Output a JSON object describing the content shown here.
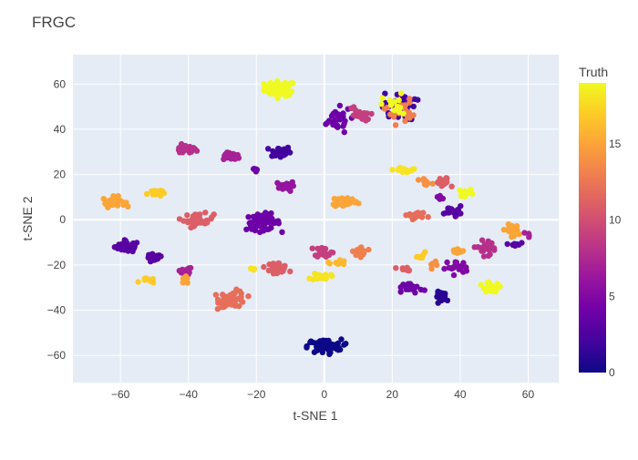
{
  "chart_data": {
    "type": "scatter",
    "title": "FRGC",
    "xlabel": "t-SNE 1",
    "ylabel": "t-SNE 2",
    "xlim": [
      -74,
      69
    ],
    "ylim": [
      -72,
      73
    ],
    "xticks": [
      -60,
      -40,
      -20,
      0,
      20,
      40,
      60
    ],
    "yticks": [
      -60,
      -40,
      -20,
      0,
      20,
      40,
      60
    ],
    "grid": true,
    "background": "#e5ecf6",
    "colorbar": {
      "title": "Truth",
      "range": [
        0,
        19
      ],
      "ticks": [
        0,
        5,
        10,
        15
      ],
      "colorscale": [
        "#0d0887",
        "#46039f",
        "#7201a8",
        "#9c179e",
        "#bd3786",
        "#d8576b",
        "#ed7953",
        "#fb9f3a",
        "#fdca26",
        "#f0f921"
      ]
    },
    "clusters": [
      {
        "x": -13,
        "y": 58,
        "truth": 19,
        "spread": [
          4.2,
          3.0
        ],
        "count": 60
      },
      {
        "x": -41,
        "y": 31,
        "truth": 8,
        "spread": [
          3.0,
          1.8
        ],
        "count": 30
      },
      {
        "x": -27,
        "y": 28,
        "truth": 7,
        "spread": [
          2.5,
          1.5
        ],
        "count": 22
      },
      {
        "x": -13,
        "y": 30,
        "truth": 2,
        "spread": [
          2.8,
          2.4
        ],
        "count": 36
      },
      {
        "x": -20,
        "y": 22,
        "truth": 4,
        "spread": [
          1.5,
          1.0
        ],
        "count": 8
      },
      {
        "x": -11,
        "y": 15,
        "truth": 6,
        "spread": [
          2.0,
          2.0
        ],
        "count": 24
      },
      {
        "x": -62,
        "y": 8,
        "truth": 15,
        "spread": [
          3.0,
          2.0
        ],
        "count": 30
      },
      {
        "x": -50,
        "y": 12,
        "truth": 17,
        "spread": [
          2.0,
          1.6
        ],
        "count": 20
      },
      {
        "x": -37,
        "y": 0,
        "truth": 11,
        "spread": [
          4.0,
          2.5
        ],
        "count": 34
      },
      {
        "x": -18,
        "y": -1,
        "truth": 4,
        "spread": [
          4.5,
          3.2
        ],
        "count": 75
      },
      {
        "x": -58,
        "y": -12,
        "truth": 3,
        "spread": [
          3.2,
          2.2
        ],
        "count": 48
      },
      {
        "x": -50,
        "y": -17,
        "truth": 3,
        "spread": [
          2.2,
          1.8
        ],
        "count": 22
      },
      {
        "x": -52,
        "y": -27,
        "truth": 17,
        "spread": [
          2.0,
          1.0
        ],
        "count": 10
      },
      {
        "x": -41,
        "y": -23,
        "truth": 7,
        "spread": [
          2.0,
          2.2
        ],
        "count": 14
      },
      {
        "x": -41,
        "y": -27,
        "truth": 15,
        "spread": [
          1.5,
          1.5
        ],
        "count": 8
      },
      {
        "x": -27,
        "y": -35,
        "truth": 12,
        "spread": [
          3.5,
          3.2
        ],
        "count": 62
      },
      {
        "x": -14,
        "y": -21,
        "truth": 11,
        "spread": [
          3.0,
          2.0
        ],
        "count": 30
      },
      {
        "x": -21,
        "y": -22,
        "truth": 18,
        "spread": [
          1.2,
          0.5
        ],
        "count": 4
      },
      {
        "x": 0,
        "y": -56,
        "truth": 0,
        "spread": [
          4.5,
          2.8
        ],
        "count": 80
      },
      {
        "x": 6,
        "y": 8,
        "truth": 15,
        "spread": [
          3.5,
          2.2
        ],
        "count": 40
      },
      {
        "x": 11,
        "y": -14,
        "truth": 13,
        "spread": [
          2.5,
          1.8
        ],
        "count": 22
      },
      {
        "x": 4,
        "y": -19,
        "truth": 16,
        "spread": [
          2.0,
          1.2
        ],
        "count": 14
      },
      {
        "x": -1,
        "y": -25,
        "truth": 18,
        "spread": [
          2.5,
          1.5
        ],
        "count": 20
      },
      {
        "x": 0,
        "y": -14,
        "truth": 9,
        "spread": [
          2.5,
          2.2
        ],
        "count": 20
      },
      {
        "x": 3,
        "y": 44,
        "truth": 4,
        "spread": [
          4.5,
          5.0
        ],
        "count": 30
      },
      {
        "x": 10,
        "y": 46,
        "truth": 9,
        "spread": [
          3.0,
          4.0
        ],
        "count": 18
      },
      {
        "x": 22,
        "y": 50,
        "truth": 2,
        "spread": [
          4.5,
          5.5
        ],
        "count": 36
      },
      {
        "x": 22,
        "y": 48,
        "truth": 13,
        "spread": [
          4.0,
          5.0
        ],
        "count": 22
      },
      {
        "x": 21,
        "y": 50,
        "truth": 19,
        "spread": [
          3.5,
          5.0
        ],
        "count": 16
      },
      {
        "x": 24,
        "y": 22,
        "truth": 18,
        "spread": [
          3.2,
          1.2
        ],
        "count": 16
      },
      {
        "x": 30,
        "y": 16,
        "truth": 14,
        "spread": [
          2.0,
          2.0
        ],
        "count": 8
      },
      {
        "x": 35,
        "y": 16,
        "truth": 11,
        "spread": [
          2.0,
          2.5
        ],
        "count": 18
      },
      {
        "x": 34,
        "y": 10,
        "truth": 5,
        "spread": [
          1.5,
          1.0
        ],
        "count": 6
      },
      {
        "x": 38,
        "y": 4,
        "truth": 3,
        "spread": [
          2.3,
          1.8
        ],
        "count": 22
      },
      {
        "x": 27,
        "y": 2,
        "truth": 12,
        "spread": [
          3.0,
          1.5
        ],
        "count": 18
      },
      {
        "x": 42,
        "y": 12,
        "truth": 19,
        "spread": [
          2.0,
          1.5
        ],
        "count": 10
      },
      {
        "x": 55,
        "y": -5,
        "truth": 15,
        "spread": [
          2.0,
          2.5
        ],
        "count": 22
      },
      {
        "x": 56,
        "y": -11,
        "truth": 3,
        "spread": [
          1.5,
          1.2
        ],
        "count": 8
      },
      {
        "x": 48,
        "y": -12,
        "truth": 8,
        "spread": [
          4.0,
          3.0
        ],
        "count": 24
      },
      {
        "x": 60,
        "y": -7,
        "truth": 7,
        "spread": [
          1.2,
          1.0
        ],
        "count": 4
      },
      {
        "x": 39,
        "y": -14,
        "truth": 15,
        "spread": [
          2.0,
          1.2
        ],
        "count": 10
      },
      {
        "x": 39,
        "y": -21,
        "truth": 5,
        "spread": [
          3.0,
          2.5
        ],
        "count": 20
      },
      {
        "x": 35,
        "y": -34,
        "truth": 1,
        "spread": [
          2.0,
          2.0
        ],
        "count": 24
      },
      {
        "x": 26,
        "y": -30,
        "truth": 4,
        "spread": [
          2.5,
          2.0
        ],
        "count": 22
      },
      {
        "x": 23,
        "y": -22,
        "truth": 11,
        "spread": [
          2.0,
          1.2
        ],
        "count": 8
      },
      {
        "x": 29,
        "y": -15,
        "truth": 17,
        "spread": [
          1.5,
          1.5
        ],
        "count": 6
      },
      {
        "x": 49,
        "y": -30,
        "truth": 19,
        "spread": [
          3.0,
          2.0
        ],
        "count": 26
      },
      {
        "x": 33,
        "y": -20,
        "truth": 14,
        "spread": [
          2.0,
          1.2
        ],
        "count": 6
      }
    ]
  }
}
